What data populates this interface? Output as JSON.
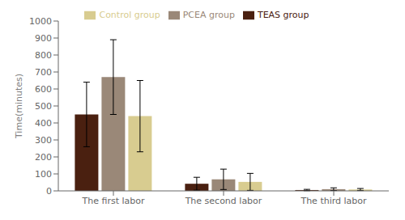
{
  "chart_data": {
    "type": "bar",
    "categories": [
      "The first labor",
      "The second labor",
      "The third labor"
    ],
    "series": [
      {
        "name": "TEAS group",
        "color": "#4a2010",
        "values": [
          450,
          42,
          5
        ],
        "errors": [
          190,
          38,
          4
        ]
      },
      {
        "name": "PCEA group",
        "color": "#9a8878",
        "values": [
          670,
          68,
          10
        ],
        "errors": [
          220,
          60,
          8
        ]
      },
      {
        "name": "Control group",
        "color": "#d8cc90",
        "values": [
          440,
          53,
          8
        ],
        "errors": [
          210,
          50,
          6
        ]
      }
    ],
    "ylabel": "Time(minutes)",
    "ylim": [
      0,
      1000
    ],
    "yticks": [
      0,
      100,
      200,
      300,
      400,
      500,
      600,
      700,
      800,
      900,
      1000
    ],
    "legend": "upper center",
    "grid": false
  }
}
